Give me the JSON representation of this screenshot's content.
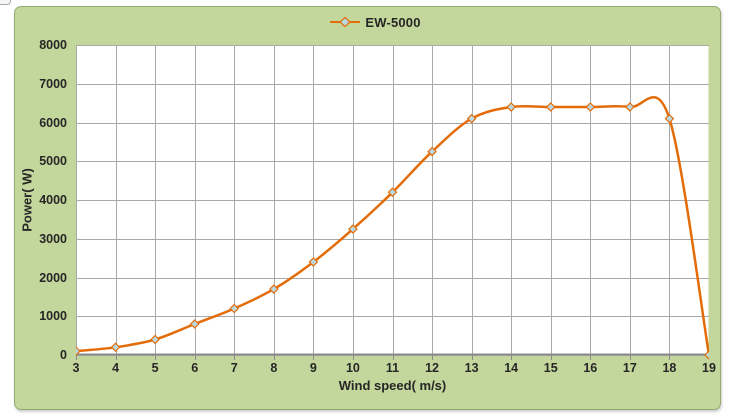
{
  "page": {
    "background": "#ffffff"
  },
  "panel": {
    "background": "#c3d69b",
    "border_color": "#96a971"
  },
  "legend": {
    "label": "EW-5000",
    "position": "top-center",
    "line_color": "#e36c09",
    "marker_fill": "#b9d8e0"
  },
  "chart_data": {
    "type": "line",
    "title": "",
    "xlabel": "Wind speed( m/s)",
    "ylabel": "Power( W)",
    "xlim": [
      3,
      19
    ],
    "ylim": [
      0,
      8000
    ],
    "xticks": [
      3,
      4,
      5,
      6,
      7,
      8,
      9,
      10,
      11,
      12,
      13,
      14,
      15,
      16,
      17,
      18,
      19
    ],
    "yticks": [
      0,
      1000,
      2000,
      3000,
      4000,
      5000,
      6000,
      7000,
      8000
    ],
    "grid": true,
    "smooth": true,
    "legend_position": "top-center",
    "series": [
      {
        "name": "EW-5000",
        "x": [
          3,
          4,
          5,
          6,
          7,
          8,
          9,
          10,
          11,
          12,
          13,
          14,
          15,
          16,
          17,
          18,
          19
        ],
        "values": [
          100,
          200,
          400,
          800,
          1200,
          1700,
          2400,
          3250,
          4200,
          5250,
          6100,
          6400,
          6400,
          6400,
          6400,
          6100,
          0
        ],
        "line_color": "#e36c09",
        "marker": "diamond",
        "marker_fill": "#b9d8e0",
        "marker_stroke": "#e36c09"
      }
    ],
    "colors": {
      "plot_background": "#ffffff",
      "gridline": "#a9a9a9",
      "axis_line": "#8b8b8b",
      "tick_text": "#262626"
    }
  }
}
